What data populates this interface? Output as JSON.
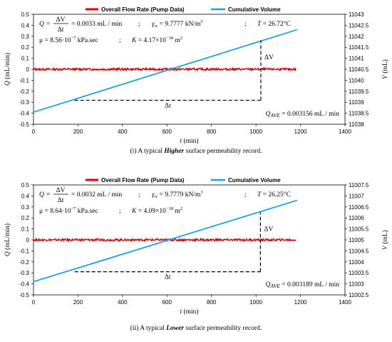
{
  "chart_data": [
    {
      "type": "line",
      "legend": [
        "Overall Flow Rate (Pump Data)",
        "Cumulative Volume"
      ],
      "xlabel": "t (min)",
      "ylabel_left": "Q (mL/min)",
      "ylabel_right": "V (mL)",
      "xlim": [
        0,
        1400
      ],
      "x_ticks": [
        "0",
        "200",
        "400",
        "600",
        "800",
        "1000",
        "1200",
        "1400"
      ],
      "ylim_left": [
        -0.5,
        0.5
      ],
      "y_ticks_left": [
        "0.5",
        "0.4",
        "0.3",
        "0.2",
        "0.1",
        "0",
        "-0.1",
        "-0.2",
        "-0.3",
        "-0.4",
        "-0.5"
      ],
      "ylim_right": [
        11038,
        11043
      ],
      "y_ticks_right": [
        "11043",
        "11042.5",
        "11042",
        "11041.5",
        "11041",
        "11040.5",
        "11040",
        "11039.5",
        "11039",
        "11038.5",
        "11038"
      ],
      "series": [
        {
          "name": "Overall Flow Rate (Pump Data)",
          "color": "#e00000",
          "x": [
            0,
            1180
          ],
          "y": [
            0,
            0
          ],
          "noise": 0.012
        },
        {
          "name": "Cumulative Volume",
          "color": "#1aa3dc",
          "x": [
            0,
            1185
          ],
          "y": [
            11038.55,
            11042.3
          ]
        }
      ],
      "triangle": {
        "x0": 185,
        "x1": 1022,
        "q_low": -0.282,
        "q_high": 0.265
      },
      "delta_v": "ΔV",
      "delta_t": "Δt",
      "eq_line1": "Q = ΔV/Δt = 0.0033 mL / min   ;   γw = 9.7777 kN/m³   ;   T = 26.72°C",
      "eq_line2": "μ = 8.56·10⁻⁷ kPa.sec   ;   K = 4.17×10⁻¹⁸ m²",
      "q_ave": "QAVE = 0.003156 mL / min",
      "caption": "(i) A typical Higher surface permeability record."
    },
    {
      "type": "line",
      "legend": [
        "Overall Flow Rate (Pump Data)",
        "Cumulative Volume"
      ],
      "xlabel": "t (min)",
      "ylabel_left": "Q (mL/min)",
      "ylabel_right": "V (mL)",
      "xlim": [
        0,
        1400
      ],
      "x_ticks": [
        "0",
        "200",
        "400",
        "600",
        "800",
        "1000",
        "1200",
        "1400"
      ],
      "ylim_left": [
        -0.5,
        0.5
      ],
      "y_ticks_left": [
        "0.5",
        "0.4",
        "0.3",
        "0.2",
        "0.1",
        "0",
        "-0.1",
        "-0.2",
        "-0.3",
        "-0.4",
        "-0.5"
      ],
      "ylim_right": [
        11002.5,
        11007.5
      ],
      "y_ticks_right": [
        "11007.5",
        "11007",
        "11006.5",
        "11006",
        "11005.5",
        "11005",
        "11004.5",
        "11004",
        "11003.5",
        "11003",
        "11002.5"
      ],
      "series": [
        {
          "name": "Overall Flow Rate (Pump Data)",
          "color": "#e00000",
          "x": [
            0,
            1180
          ],
          "y": [
            0,
            0
          ],
          "noise": 0.012
        },
        {
          "name": "Cumulative Volume",
          "color": "#1aa3dc",
          "x": [
            0,
            1185
          ],
          "y": [
            11003.1,
            11006.8
          ]
        }
      ],
      "triangle": {
        "x0": 185,
        "x1": 1020,
        "q_low": -0.29,
        "q_high": 0.25
      },
      "delta_v": "ΔV",
      "delta_t": "Δt",
      "eq_line1": "Q = ΔV/Δt = 0.0032 mL / min   ;   γw = 9.7779 kN/m³   ;   T = 26.25°C",
      "eq_line2": "μ = 8.64·10⁻⁷ kPa.sec   ;   K = 4.09×10⁻¹⁸ m²",
      "q_ave": "QAVE = 0.003189 mL / min",
      "caption": "(ii) A typical Lower surface permeability record."
    }
  ],
  "eq_parts": {
    "q": "Q",
    "eq": "=",
    "dv": "ΔV",
    "dt": "Δt",
    "rates": [
      "= 0.0033 mL / min",
      "= 0.0032 mL / min"
    ],
    "semi": ";",
    "gw": "γ",
    "gw_sub": "w",
    "gw_vals": [
      "= 9.7777 kN/m",
      "= 9.7779 kN/m"
    ],
    "cube": "3",
    "T_lbl": "T",
    "T_vals": [
      "= 26.72°C",
      "= 26.25°C"
    ],
    "mu_vals": [
      "μ = 8.56·10",
      "μ = 8.64·10"
    ],
    "exp7": "−7",
    "kpa": "kPa.sec",
    "K_lbl": "K",
    "K_vals": [
      "= 4.17×10",
      "= 4.09×10"
    ],
    "exp18": "−18",
    "m2": "m",
    "sq": "2",
    "qave_q": "Q",
    "qave_sub": "AVE",
    "qave_vals": [
      "= 0.003156 mL / min",
      "= 0.003189 mL / min"
    ],
    "t_lbl": "t",
    "t_unit": "(min)",
    "qaxis": "Q",
    "qaxis_unit": "(mL/min)",
    "vaxis": "V",
    "vaxis_unit": "(mL)",
    "cap_pre": [
      "(i) A typical ",
      "(ii) A typical "
    ],
    "cap_em": [
      "Higher",
      "Lower"
    ],
    "cap_post": [
      " surface permeability record.",
      " surface permeability record."
    ]
  }
}
